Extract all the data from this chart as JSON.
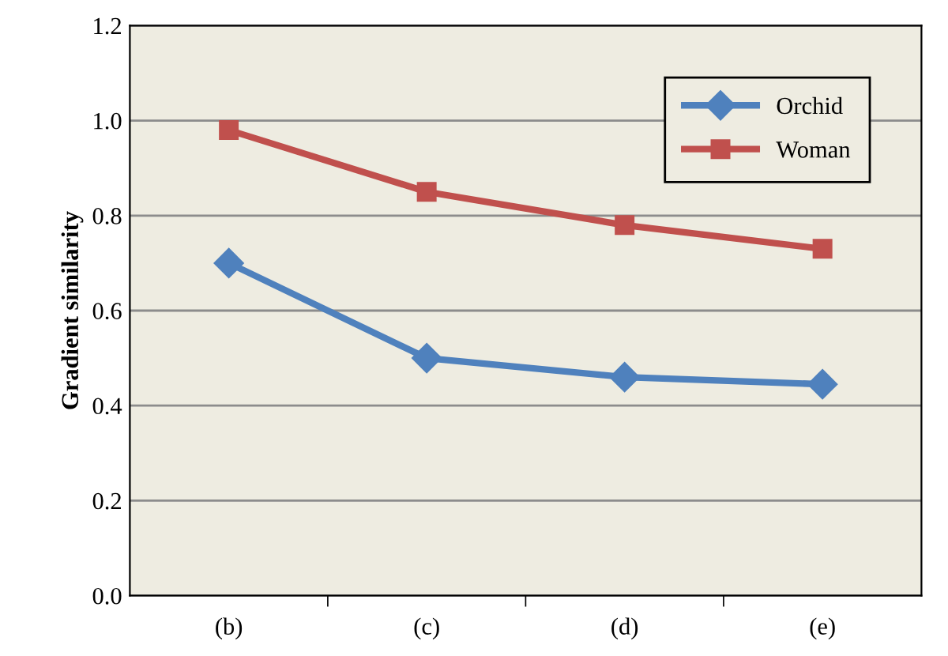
{
  "chart_data": {
    "type": "line",
    "ylabel": "Gradient similarity",
    "categories": [
      "(b)",
      "(c)",
      "(d)",
      "(e)"
    ],
    "series": [
      {
        "name": "Orchid",
        "color": "#4f81bd",
        "marker": "diamond",
        "values": [
          0.7,
          0.5,
          0.46,
          0.445
        ]
      },
      {
        "name": "Woman",
        "color": "#c0504d",
        "marker": "square",
        "values": [
          0.98,
          0.85,
          0.78,
          0.73
        ]
      }
    ],
    "ylim": [
      0.0,
      1.2
    ],
    "yticks": [
      {
        "value": 0,
        "label": "0.0"
      },
      0.2,
      0.4,
      0.6,
      0.8,
      {
        "value": 1,
        "label": "1.0"
      },
      1.2
    ],
    "grid": "y",
    "legend": "top right",
    "line_style": "solid"
  }
}
